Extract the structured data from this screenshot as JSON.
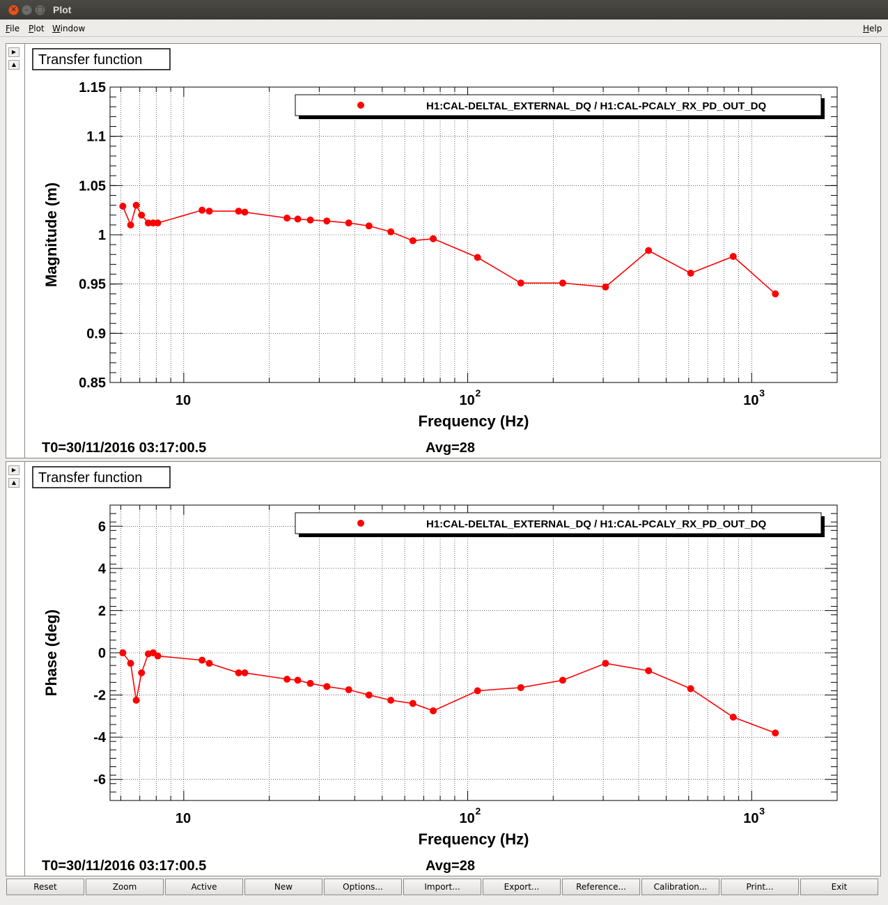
{
  "window": {
    "title": "Plot"
  },
  "menu": {
    "file": "File",
    "plot": "Plot",
    "window": "Window",
    "help": "Help"
  },
  "colors": {
    "series": "#ff0000",
    "accent_close": "#e9541f"
  },
  "panels": [
    {
      "title": "Transfer function",
      "t0": "T0=30/11/2016 03:17:00.5",
      "avg": "Avg=28",
      "chart_data": {
        "type": "line",
        "xscale": "log",
        "xlabel": "Frequency (Hz)",
        "ylabel": "Magnitude (m)",
        "xlim": [
          5.5,
          2000
        ],
        "ylim": [
          0.85,
          1.15
        ],
        "yticks": [
          0.85,
          0.9,
          0.95,
          1.0,
          1.05,
          1.1,
          1.15
        ],
        "ytick_labels": [
          "0.85",
          "0.9",
          "0.95",
          "1",
          "1.05",
          "1.1",
          "1.15"
        ],
        "xtick_labels": [
          "10",
          "10",
          "10"
        ],
        "xtick_exponents": [
          "",
          "2",
          "3"
        ],
        "grid": true,
        "legend_position": "top-right",
        "series": [
          {
            "name": "H1:CAL-DELTAL_EXTERNAL_DQ / H1:CAL-PCALY_RX_PD_OUT_DQ",
            "x": [
              6.1,
              6.5,
              6.8,
              7.1,
              7.5,
              7.8,
              8.1,
              11.6,
              12.3,
              15.6,
              16.4,
              23.1,
              25.2,
              27.9,
              31.9,
              38.1,
              44.9,
              53.6,
              64.1,
              75.6,
              108.3,
              153.8,
              216.0,
              305.7,
              433.3,
              609.7,
              861.0,
              1211.6
            ],
            "y": [
              1.029,
              1.01,
              1.03,
              1.02,
              1.012,
              1.012,
              1.012,
              1.025,
              1.024,
              1.024,
              1.023,
              1.017,
              1.016,
              1.015,
              1.014,
              1.012,
              1.009,
              1.003,
              0.994,
              0.996,
              0.977,
              0.951,
              0.951,
              0.947,
              0.984,
              0.961,
              0.978,
              0.94
            ]
          }
        ]
      }
    },
    {
      "title": "Transfer function",
      "t0": "T0=30/11/2016 03:17:00.5",
      "avg": "Avg=28",
      "chart_data": {
        "type": "line",
        "xscale": "log",
        "xlabel": "Frequency (Hz)",
        "ylabel": "Phase (deg)",
        "xlim": [
          5.5,
          2000
        ],
        "ylim": [
          -7,
          7
        ],
        "yticks": [
          -6,
          -4,
          -2,
          0,
          2,
          4,
          6
        ],
        "ytick_labels": [
          "-6",
          "-4",
          "-2",
          "0",
          "2",
          "4",
          "6"
        ],
        "xtick_labels": [
          "10",
          "10",
          "10"
        ],
        "xtick_exponents": [
          "",
          "2",
          "3"
        ],
        "grid": true,
        "legend_position": "top-right",
        "series": [
          {
            "name": "H1:CAL-DELTAL_EXTERNAL_DQ / H1:CAL-PCALY_RX_PD_OUT_DQ",
            "x": [
              6.1,
              6.5,
              6.8,
              7.1,
              7.5,
              7.8,
              8.1,
              11.6,
              12.3,
              15.6,
              16.4,
              23.1,
              25.2,
              27.9,
              31.9,
              38.1,
              44.9,
              53.6,
              64.1,
              75.6,
              108.3,
              153.8,
              216.0,
              305.7,
              433.3,
              609.7,
              861.0,
              1211.6
            ],
            "y": [
              0.0,
              -0.5,
              -2.25,
              -0.95,
              -0.05,
              0.0,
              -0.15,
              -0.35,
              -0.5,
              -0.95,
              -0.95,
              -1.25,
              -1.3,
              -1.45,
              -1.6,
              -1.75,
              -2.0,
              -2.25,
              -2.4,
              -2.75,
              -1.8,
              -1.65,
              -1.3,
              -0.5,
              -0.85,
              -1.7,
              -3.05,
              -3.8
            ]
          }
        ]
      }
    }
  ],
  "buttons": [
    "Reset",
    "Zoom",
    "Active",
    "New",
    "Options...",
    "Import...",
    "Export...",
    "Reference...",
    "Calibration...",
    "Print...",
    "Exit"
  ]
}
